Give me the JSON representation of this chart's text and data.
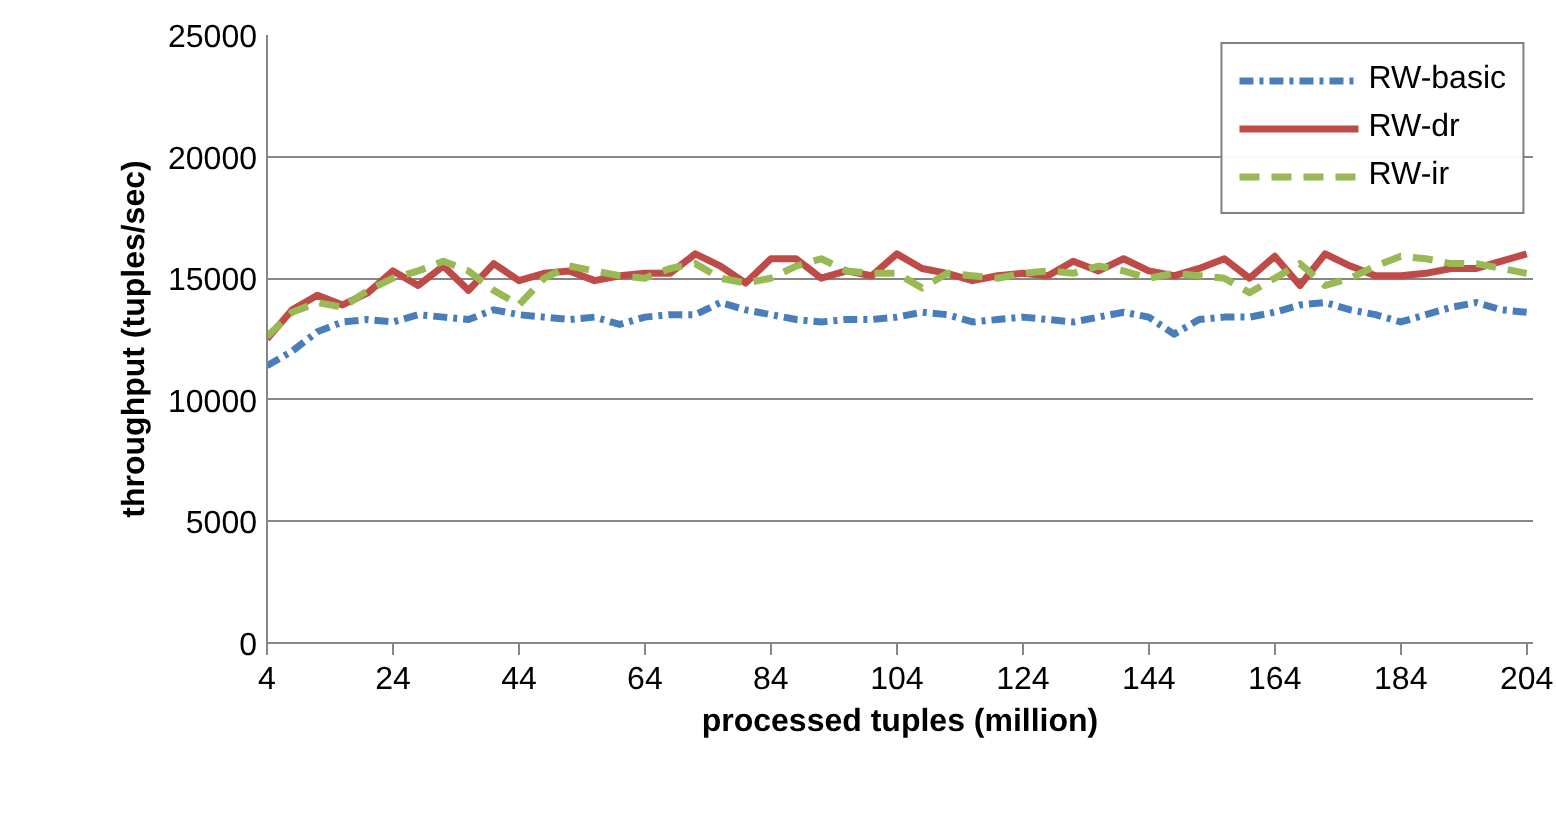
{
  "chart_data": {
    "type": "line",
    "xlabel": "processed tuples (million)",
    "ylabel": "throughput (tuples/sec)",
    "x": [
      4,
      8,
      12,
      16,
      20,
      24,
      28,
      32,
      36,
      40,
      44,
      48,
      52,
      56,
      60,
      64,
      68,
      72,
      76,
      80,
      84,
      88,
      92,
      96,
      100,
      104,
      108,
      112,
      116,
      120,
      124,
      128,
      132,
      136,
      140,
      144,
      148,
      152,
      156,
      160,
      164,
      168,
      172,
      176,
      180,
      184,
      188,
      192,
      196,
      200,
      204
    ],
    "series": [
      {
        "name": "RW-basic",
        "color": "#4a7ebb",
        "line_style": "dashdot",
        "values": [
          11400,
          12000,
          12800,
          13200,
          13300,
          13200,
          13500,
          13400,
          13300,
          13700,
          13500,
          13400,
          13300,
          13400,
          13100,
          13400,
          13500,
          13500,
          14000,
          13700,
          13500,
          13300,
          13200,
          13300,
          13300,
          13400,
          13600,
          13500,
          13200,
          13300,
          13400,
          13300,
          13200,
          13400,
          13600,
          13400,
          12700,
          13300,
          13400,
          13400,
          13600,
          13900,
          14000,
          13700,
          13500,
          13200,
          13500,
          13800,
          14000,
          13700,
          13600
        ]
      },
      {
        "name": "RW-dr",
        "color": "#be4b48",
        "line_style": "solid",
        "values": [
          12500,
          13700,
          14300,
          13900,
          14400,
          15300,
          14700,
          15500,
          14500,
          15600,
          14900,
          15200,
          15300,
          14900,
          15100,
          15200,
          15200,
          16000,
          15500,
          14800,
          15800,
          15800,
          15000,
          15300,
          15100,
          16000,
          15400,
          15200,
          14900,
          15100,
          15200,
          15100,
          15700,
          15300,
          15800,
          15300,
          15100,
          15400,
          15800,
          15000,
          15900,
          14700,
          16000,
          15500,
          15100,
          15100,
          15200,
          15400,
          15400,
          15700,
          16000
        ]
      },
      {
        "name": "RW-ir",
        "color": "#98b954",
        "line_style": "dashed",
        "values": [
          12600,
          13600,
          14000,
          13800,
          14500,
          15000,
          15300,
          15700,
          15300,
          14500,
          13900,
          15000,
          15500,
          15300,
          15100,
          15000,
          15400,
          15600,
          15000,
          14800,
          15000,
          15500,
          15800,
          15300,
          15200,
          15200,
          14600,
          15200,
          15100,
          15000,
          15200,
          15300,
          15200,
          15500,
          15300,
          15000,
          15200,
          15100,
          15000,
          14400,
          15000,
          15600,
          14700,
          15000,
          15500,
          15900,
          15800,
          15600,
          15600,
          15400,
          15200
        ]
      }
    ],
    "xlim": [
      4,
      205
    ],
    "xticks": [
      4,
      24,
      44,
      64,
      84,
      104,
      124,
      144,
      164,
      184,
      204
    ],
    "ylim": [
      0,
      25000
    ],
    "yticks": [
      0,
      5000,
      10000,
      15000,
      20000,
      25000
    ],
    "grid": "y",
    "legend": "top right",
    "marker": "none"
  }
}
